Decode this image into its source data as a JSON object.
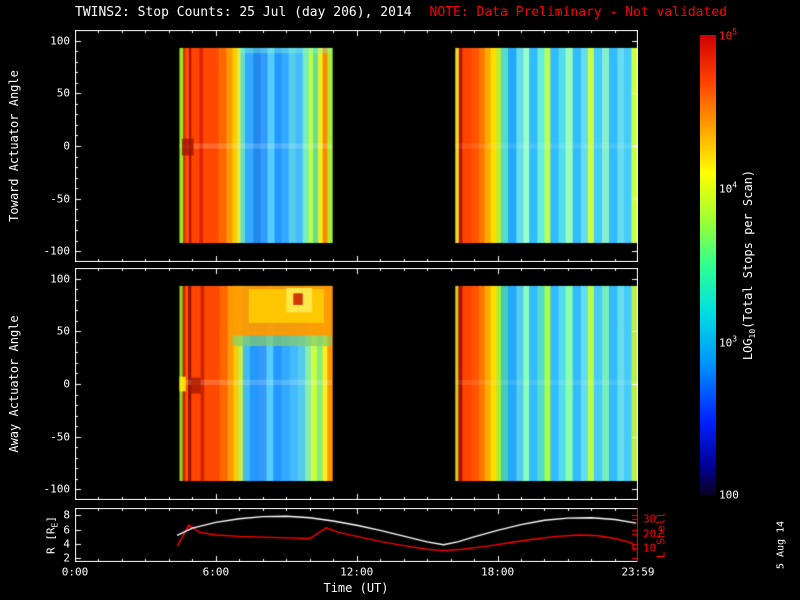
{
  "title": {
    "main": "TWINS2: Stop Counts: 25 Jul (day 206), 2014",
    "note": "NOTE: Data Preliminary - Not validated"
  },
  "date_stamp": "5 Aug 14",
  "colors": {
    "background": "#000000",
    "foreground": "#ffffff",
    "note": "#ff0000",
    "l_shell": "#ff0000",
    "r_line": "#ffffff"
  },
  "axis": {
    "toward_label": "Toward Actuator Angle",
    "away_label": "Away Actuator Angle",
    "time_label": "Time (UT)",
    "r_label": {
      "pre": "R [R",
      "sub": "E",
      "post": "]"
    },
    "l_label": "L Shell",
    "colorbar_label": {
      "pre": "LOG",
      "sub": "10",
      "post": "(Total Stops per Scan)"
    }
  },
  "chart_data": {
    "type": "heatmap",
    "title": "TWINS2: Stop Counts: 25 Jul (day 206), 2014",
    "xlabel": "Time (UT)",
    "time_range": [
      0,
      23.983
    ],
    "time_ticks": [
      {
        "t": 0,
        "label": "0:00"
      },
      {
        "t": 6,
        "label": "6:00"
      },
      {
        "t": 12,
        "label": "12:00"
      },
      {
        "t": 18,
        "label": "18:00"
      },
      {
        "t": 23.983,
        "label": "23:59"
      }
    ],
    "angle_range": [
      -110,
      110
    ],
    "angle_ticks": [
      -100,
      -50,
      0,
      50,
      100
    ],
    "data_angle_extent": [
      -92,
      93
    ],
    "panels": [
      {
        "name": "toward",
        "ylabel": "Toward Actuator Angle",
        "segments": [
          {
            "time_span": [
              4.45,
              10.95
            ],
            "stripes": [
              [
                4.45,
                4.6,
                "#99ee22"
              ],
              [
                4.6,
                4.72,
                "#dd3300"
              ],
              [
                4.72,
                4.85,
                "#ff5500"
              ],
              [
                4.85,
                4.95,
                "#bb1100"
              ],
              [
                4.95,
                5.3,
                "#ff4400"
              ],
              [
                5.3,
                5.45,
                "#dd2200"
              ],
              [
                5.45,
                6.1,
                "#ff4800"
              ],
              [
                6.1,
                6.45,
                "#ff6600"
              ],
              [
                6.45,
                6.7,
                "#ff9900"
              ],
              [
                6.7,
                6.9,
                "#ffcc00"
              ],
              [
                6.9,
                7.05,
                "#ddee44"
              ],
              [
                7.05,
                7.25,
                "#66ddcc"
              ],
              [
                7.25,
                7.6,
                "#33aaff"
              ],
              [
                7.6,
                7.9,
                "#2288ee"
              ],
              [
                7.9,
                8.2,
                "#3399ff"
              ],
              [
                8.2,
                8.5,
                "#55ccff"
              ],
              [
                8.5,
                8.8,
                "#2299ff"
              ],
              [
                8.8,
                9.1,
                "#33aaff"
              ],
              [
                9.1,
                9.4,
                "#55ccee"
              ],
              [
                9.4,
                9.7,
                "#44bbff"
              ],
              [
                9.7,
                9.95,
                "#77eebb"
              ],
              [
                9.95,
                10.15,
                "#bbff44"
              ],
              [
                10.15,
                10.35,
                "#66dd99"
              ],
              [
                10.35,
                10.55,
                "#eeee22"
              ],
              [
                10.55,
                10.75,
                "#ff8800"
              ],
              [
                10.75,
                10.95,
                "#aaee33"
              ]
            ]
          },
          {
            "time_span": [
              16.2,
              23.95
            ],
            "stripes": [
              [
                16.2,
                16.35,
                "#eedd22"
              ],
              [
                16.35,
                16.5,
                "#bb1100"
              ],
              [
                16.5,
                16.9,
                "#ff4400"
              ],
              [
                16.9,
                17.2,
                "#ff5500"
              ],
              [
                17.2,
                17.45,
                "#ff7700"
              ],
              [
                17.45,
                17.7,
                "#ffaa00"
              ],
              [
                17.7,
                17.95,
                "#ffdd00"
              ],
              [
                17.95,
                18.15,
                "#bbee33"
              ],
              [
                18.15,
                18.45,
                "#55ddcc"
              ],
              [
                18.45,
                18.8,
                "#22aaff"
              ],
              [
                18.8,
                19.1,
                "#66ddee"
              ],
              [
                19.1,
                19.35,
                "#99ffcc"
              ],
              [
                19.35,
                19.7,
                "#33bbff"
              ],
              [
                19.7,
                20.0,
                "#66eedd"
              ],
              [
                20.0,
                20.25,
                "#bbff55"
              ],
              [
                20.25,
                20.6,
                "#33bbff"
              ],
              [
                20.6,
                20.9,
                "#55ddee"
              ],
              [
                20.9,
                21.2,
                "#99ffbb"
              ],
              [
                21.2,
                21.55,
                "#33bbff"
              ],
              [
                21.55,
                21.85,
                "#66ddee"
              ],
              [
                21.85,
                22.1,
                "#ccff44"
              ],
              [
                22.1,
                22.45,
                "#44ccff"
              ],
              [
                22.45,
                22.75,
                "#88eecc"
              ],
              [
                22.75,
                23.1,
                "#33bbff"
              ],
              [
                23.1,
                23.4,
                "#66ddee"
              ],
              [
                23.4,
                23.7,
                "#44ccff"
              ],
              [
                23.7,
                23.95,
                "#ccff44"
              ]
            ]
          }
        ],
        "overlays": [
          [
            4.45,
            10.95,
            -2.5,
            2.5,
            "#ffffff",
            0.18
          ],
          [
            4.55,
            5.05,
            -9,
            7,
            "#991100",
            0.75
          ],
          [
            7.0,
            10.95,
            88,
            93,
            "#88ffcc",
            0.35
          ],
          [
            16.2,
            23.95,
            -2.5,
            2.5,
            "#ffffff",
            0.1
          ]
        ]
      },
      {
        "name": "away",
        "ylabel": "Away Actuator Angle",
        "segments": [
          {
            "time_span": [
              4.45,
              10.95
            ],
            "stripes": [
              [
                4.45,
                4.58,
                "#88dd22"
              ],
              [
                4.58,
                4.7,
                "#cc2200"
              ],
              [
                4.7,
                4.82,
                "#ff5500"
              ],
              [
                4.82,
                4.95,
                "#991100"
              ],
              [
                4.95,
                5.35,
                "#ff4400"
              ],
              [
                5.35,
                5.5,
                "#cc2200"
              ],
              [
                5.5,
                6.15,
                "#ff4800"
              ],
              [
                6.15,
                6.5,
                "#ff6600"
              ],
              [
                6.5,
                6.75,
                "#ff9900"
              ],
              [
                6.75,
                6.95,
                "#ffcc00"
              ],
              [
                6.95,
                7.15,
                "#ccee44"
              ],
              [
                7.15,
                7.45,
                "#44bbee"
              ],
              [
                7.45,
                7.8,
                "#2299ff"
              ],
              [
                7.8,
                8.15,
                "#3399ff"
              ],
              [
                8.15,
                8.45,
                "#55ccff"
              ],
              [
                8.45,
                8.8,
                "#2299ff"
              ],
              [
                8.8,
                9.15,
                "#33aaff"
              ],
              [
                9.15,
                9.5,
                "#44bbff"
              ],
              [
                9.5,
                9.8,
                "#55ccee"
              ],
              [
                9.8,
                10.05,
                "#88eeaa"
              ],
              [
                10.05,
                10.3,
                "#ccff44"
              ],
              [
                10.3,
                10.55,
                "#88ee77"
              ],
              [
                10.55,
                10.75,
                "#ffee22"
              ],
              [
                10.75,
                10.95,
                "#ff9900"
              ]
            ]
          },
          {
            "time_span": [
              16.2,
              23.95
            ],
            "stripes": [
              [
                16.2,
                16.33,
                "#ddcc22"
              ],
              [
                16.33,
                16.5,
                "#aa1100"
              ],
              [
                16.5,
                16.9,
                "#ff4400"
              ],
              [
                16.9,
                17.2,
                "#ff5500"
              ],
              [
                17.2,
                17.45,
                "#ff7700"
              ],
              [
                17.45,
                17.7,
                "#ffaa00"
              ],
              [
                17.7,
                17.95,
                "#ffdd00"
              ],
              [
                17.95,
                18.15,
                "#aaee33"
              ],
              [
                18.15,
                18.45,
                "#44ccbb"
              ],
              [
                18.45,
                18.8,
                "#22aaff"
              ],
              [
                18.8,
                19.1,
                "#55ccee"
              ],
              [
                19.1,
                19.35,
                "#88ffbb"
              ],
              [
                19.35,
                19.7,
                "#33bbff"
              ],
              [
                19.7,
                20.0,
                "#55ddcc"
              ],
              [
                20.0,
                20.25,
                "#aaff44"
              ],
              [
                20.25,
                20.6,
                "#33bbff"
              ],
              [
                20.6,
                20.9,
                "#55ddee"
              ],
              [
                20.9,
                21.2,
                "#88ffaa"
              ],
              [
                21.2,
                21.55,
                "#33bbff"
              ],
              [
                21.55,
                21.85,
                "#66ddee"
              ],
              [
                21.85,
                22.1,
                "#bbff44"
              ],
              [
                22.1,
                22.45,
                "#44ccff"
              ],
              [
                22.45,
                22.75,
                "#77eebb"
              ],
              [
                22.75,
                23.1,
                "#33bbff"
              ],
              [
                23.1,
                23.4,
                "#66ddee"
              ],
              [
                23.4,
                23.7,
                "#44ccff"
              ],
              [
                23.7,
                23.95,
                "#bbee44"
              ]
            ]
          }
        ],
        "overlays": [
          [
            4.45,
            10.95,
            -1,
            4,
            "#ffffff",
            0.18
          ],
          [
            4.45,
            4.72,
            -7,
            7,
            "#ffee00",
            0.9
          ],
          [
            4.95,
            5.35,
            -9,
            6,
            "#991100",
            0.7
          ],
          [
            6.7,
            10.95,
            36,
            50,
            "#88cc66",
            0.7
          ],
          [
            6.7,
            10.95,
            46,
            93,
            "#ff9900",
            0.95
          ],
          [
            7.4,
            10.6,
            58,
            90,
            "#ffcc00",
            0.9
          ],
          [
            9.0,
            10.1,
            68,
            91,
            "#ffe84d",
            0.95
          ],
          [
            9.3,
            9.7,
            75,
            86,
            "#cc2200",
            0.9
          ],
          [
            16.2,
            23.95,
            -1,
            4,
            "#ffffff",
            0.1
          ]
        ]
      }
    ],
    "line_chart": {
      "type": "line",
      "series": [
        {
          "name": "R [RE]",
          "color": "#ffffff",
          "axis": "left",
          "range": [
            1.5,
            9.0
          ],
          "ticks": [
            2,
            4,
            6,
            8
          ],
          "points": [
            [
              4.35,
              5.2
            ],
            [
              5.0,
              6.2
            ],
            [
              6.0,
              7.0
            ],
            [
              7.0,
              7.5
            ],
            [
              8.0,
              7.8
            ],
            [
              9.0,
              7.85
            ],
            [
              10.0,
              7.65
            ],
            [
              11.0,
              7.2
            ],
            [
              12.0,
              6.6
            ],
            [
              13.0,
              5.9
            ],
            [
              14.0,
              5.1
            ],
            [
              15.0,
              4.3
            ],
            [
              15.7,
              3.9
            ],
            [
              16.3,
              4.3
            ],
            [
              17.0,
              5.0
            ],
            [
              18.0,
              5.9
            ],
            [
              19.0,
              6.7
            ],
            [
              20.0,
              7.3
            ],
            [
              21.0,
              7.6
            ],
            [
              22.0,
              7.65
            ],
            [
              23.0,
              7.4
            ],
            [
              23.9,
              6.9
            ]
          ]
        },
        {
          "name": "L Shell",
          "color": "#ff0000",
          "axis": "right",
          "range": [
            0,
            38
          ],
          "ticks": [
            10,
            20,
            30
          ],
          "points": [
            [
              4.35,
              11
            ],
            [
              4.85,
              26
            ],
            [
              5.3,
              21
            ],
            [
              6.0,
              19
            ],
            [
              7.0,
              18
            ],
            [
              8.0,
              17.5
            ],
            [
              9.0,
              17
            ],
            [
              10.0,
              16.5
            ],
            [
              10.7,
              24
            ],
            [
              11.2,
              21
            ],
            [
              12.0,
              18
            ],
            [
              13.0,
              14.5
            ],
            [
              14.0,
              11.5
            ],
            [
              15.0,
              9
            ],
            [
              15.7,
              8
            ],
            [
              16.5,
              9
            ],
            [
              17.5,
              11
            ],
            [
              18.5,
              13.5
            ],
            [
              19.5,
              16
            ],
            [
              20.5,
              18
            ],
            [
              21.5,
              19
            ],
            [
              22.3,
              18.5
            ],
            [
              23.0,
              16.5
            ],
            [
              23.5,
              14.5
            ],
            [
              23.75,
              13
            ],
            [
              23.82,
              7.5
            ]
          ]
        }
      ]
    },
    "colorbar": {
      "label": "LOG10(Total Stops per Scan)",
      "scale": "log",
      "range": [
        100,
        100000
      ],
      "ticks": [
        {
          "base": "10",
          "exp": "5",
          "frac": 1.0,
          "color": "#ff2222"
        },
        {
          "base": "10",
          "exp": "4",
          "frac": 0.667,
          "color": "#ffffff"
        },
        {
          "base": "10",
          "exp": "3",
          "frac": 0.333,
          "color": "#ffffff"
        },
        {
          "base": "100",
          "exp": "",
          "frac": 0.0,
          "color": "#ffffff"
        }
      ],
      "stops": [
        [
          0.0,
          "#0a0020"
        ],
        [
          0.06,
          "#000090"
        ],
        [
          0.16,
          "#0020ff"
        ],
        [
          0.28,
          "#0090ff"
        ],
        [
          0.4,
          "#00e0e0"
        ],
        [
          0.5,
          "#30ff90"
        ],
        [
          0.6,
          "#a0ff30"
        ],
        [
          0.7,
          "#ffff00"
        ],
        [
          0.8,
          "#ffa000"
        ],
        [
          0.9,
          "#ff4000"
        ],
        [
          1.0,
          "#d00000"
        ]
      ]
    }
  }
}
